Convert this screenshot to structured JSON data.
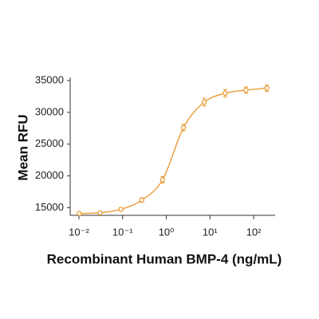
{
  "chart_data": {
    "type": "scatter",
    "x_label": "Recombinant Human BMP-4 (ng/mL)",
    "y_label": "Mean RFU",
    "x": [
      0.0102,
      0.0305,
      0.0914,
      0.274,
      0.823,
      2.47,
      7.41,
      22.2,
      66.7,
      200
    ],
    "series": [
      {
        "color": "#e8962a",
        "values": [
          14100,
          14200,
          14750,
          16200,
          19400,
          27600,
          31600,
          33000,
          33500,
          33800
        ],
        "errors": [
          200,
          200,
          250,
          350,
          500,
          500,
          600,
          600,
          500,
          500
        ]
      }
    ],
    "x_log": true,
    "xlim": [
      0.0063,
      310
    ],
    "xticks": [
      {
        "value": 0.01,
        "label": "10⁻²"
      },
      {
        "value": 0.1,
        "label": "10⁻¹"
      },
      {
        "value": 1,
        "label": "10⁰"
      },
      {
        "value": 10,
        "label": "10¹"
      },
      {
        "value": 100,
        "label": "10²"
      }
    ],
    "ylim": [
      13800,
      35500
    ],
    "yticks": [
      15000,
      20000,
      25000,
      30000,
      35000
    ]
  }
}
